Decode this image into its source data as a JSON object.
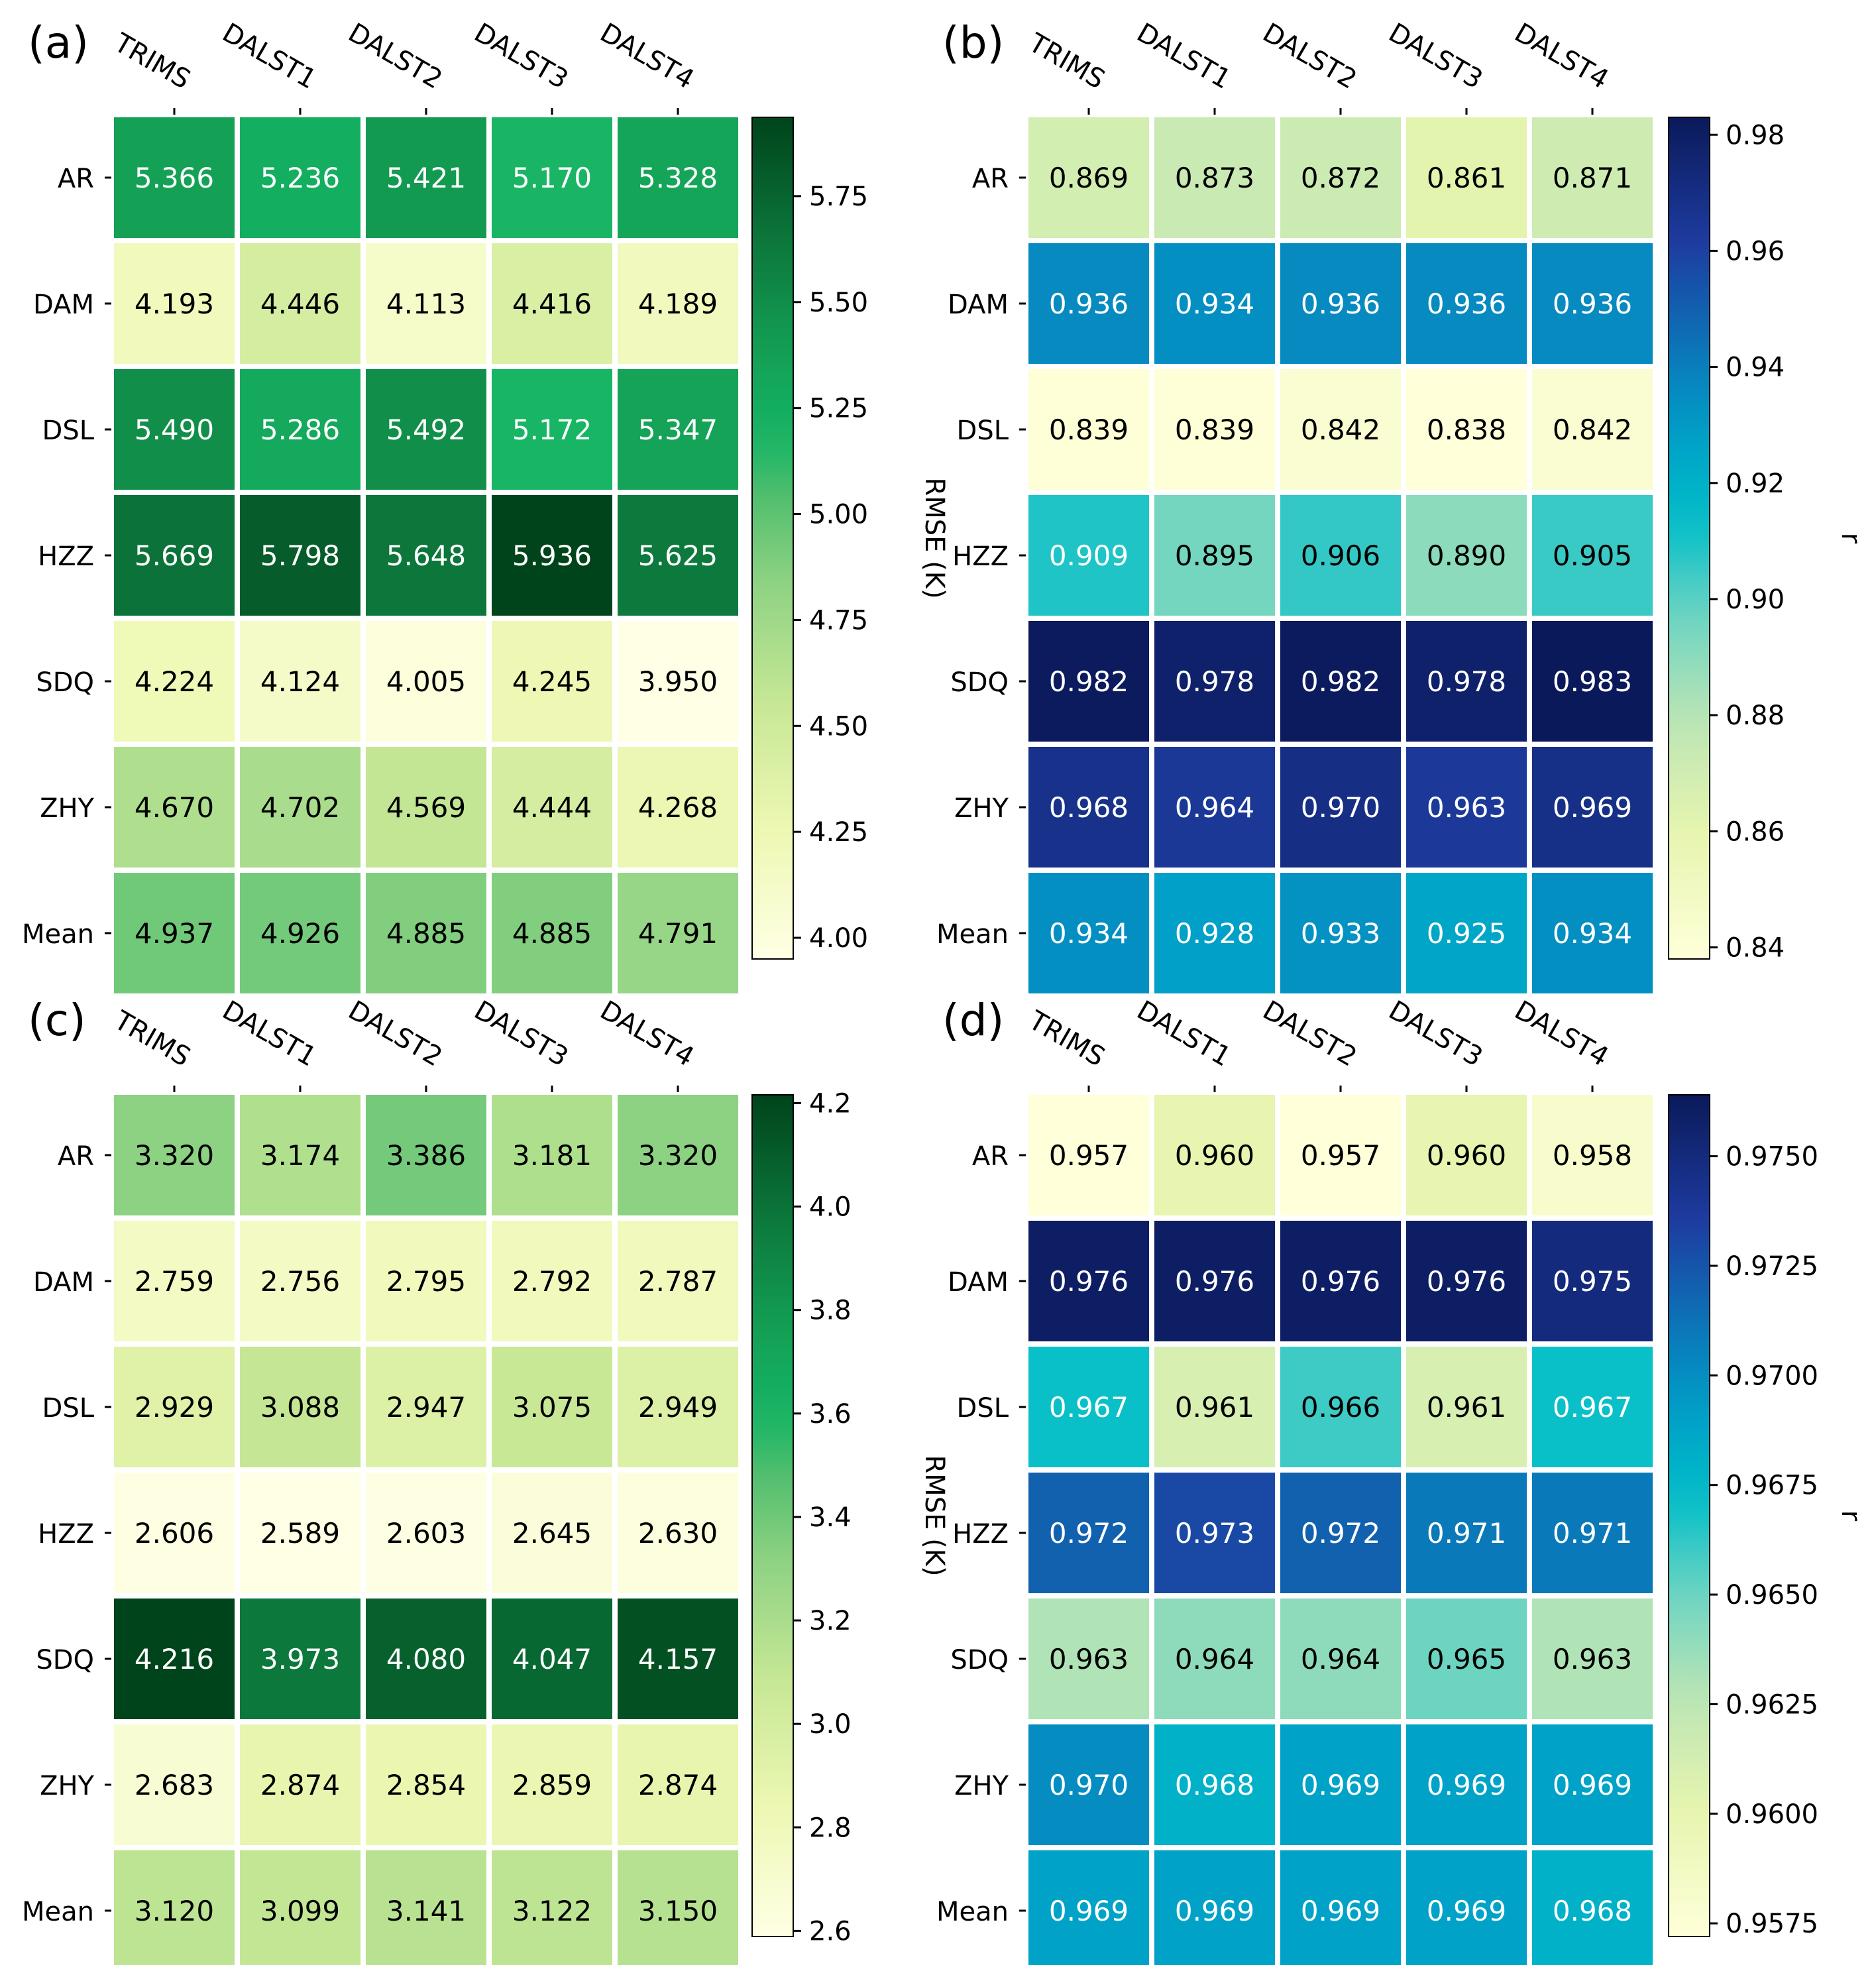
{
  "chart_data": [
    {
      "type": "heatmap",
      "panel_label": "(a)",
      "columns": [
        "TRIMS",
        "DALST1",
        "DALST2",
        "DALST3",
        "DALST4"
      ],
      "rows": [
        "AR",
        "DAM",
        "DSL",
        "HZZ",
        "SDQ",
        "ZHY",
        "Mean"
      ],
      "values": [
        [
          "5.366",
          "5.236",
          "5.421",
          "5.170",
          "5.328"
        ],
        [
          "4.193",
          "4.446",
          "4.113",
          "4.416",
          "4.189"
        ],
        [
          "5.490",
          "5.286",
          "5.492",
          "5.172",
          "5.347"
        ],
        [
          "5.669",
          "5.798",
          "5.648",
          "5.936",
          "5.625"
        ],
        [
          "4.224",
          "4.124",
          "4.005",
          "4.245",
          "3.950"
        ],
        [
          "4.670",
          "4.702",
          "4.569",
          "4.444",
          "4.268"
        ],
        [
          "4.937",
          "4.926",
          "4.885",
          "4.885",
          "4.791"
        ]
      ],
      "colormap": "Greens",
      "colorbar_label": "RMSE (K)",
      "colorbar_range": [
        3.95,
        5.936
      ],
      "colorbar_ticks": [
        "4.00",
        "4.25",
        "4.50",
        "4.75",
        "5.00",
        "5.25",
        "5.50",
        "5.75"
      ]
    },
    {
      "type": "heatmap",
      "panel_label": "(b)",
      "columns": [
        "TRIMS",
        "DALST1",
        "DALST2",
        "DALST3",
        "DALST4"
      ],
      "rows": [
        "AR",
        "DAM",
        "DSL",
        "HZZ",
        "SDQ",
        "ZHY",
        "Mean"
      ],
      "values": [
        [
          "0.869",
          "0.873",
          "0.872",
          "0.861",
          "0.871"
        ],
        [
          "0.936",
          "0.934",
          "0.936",
          "0.936",
          "0.936"
        ],
        [
          "0.839",
          "0.839",
          "0.842",
          "0.838",
          "0.842"
        ],
        [
          "0.909",
          "0.895",
          "0.906",
          "0.890",
          "0.905"
        ],
        [
          "0.982",
          "0.978",
          "0.982",
          "0.978",
          "0.983"
        ],
        [
          "0.968",
          "0.964",
          "0.970",
          "0.963",
          "0.969"
        ],
        [
          "0.934",
          "0.928",
          "0.933",
          "0.925",
          "0.934"
        ]
      ],
      "colormap": "YlGnBu",
      "colorbar_label": "r",
      "colorbar_range": [
        0.838,
        0.983
      ],
      "colorbar_ticks": [
        "0.84",
        "0.86",
        "0.88",
        "0.90",
        "0.92",
        "0.94",
        "0.96",
        "0.98"
      ]
    },
    {
      "type": "heatmap",
      "panel_label": "(c)",
      "columns": [
        "TRIMS",
        "DALST1",
        "DALST2",
        "DALST3",
        "DALST4"
      ],
      "rows": [
        "AR",
        "DAM",
        "DSL",
        "HZZ",
        "SDQ",
        "ZHY",
        "Mean"
      ],
      "values": [
        [
          "3.320",
          "3.174",
          "3.386",
          "3.181",
          "3.320"
        ],
        [
          "2.759",
          "2.756",
          "2.795",
          "2.792",
          "2.787"
        ],
        [
          "2.929",
          "3.088",
          "2.947",
          "3.075",
          "2.949"
        ],
        [
          "2.606",
          "2.589",
          "2.603",
          "2.645",
          "2.630"
        ],
        [
          "4.216",
          "3.973",
          "4.080",
          "4.047",
          "4.157"
        ],
        [
          "2.683",
          "2.874",
          "2.854",
          "2.859",
          "2.874"
        ],
        [
          "3.120",
          "3.099",
          "3.141",
          "3.122",
          "3.150"
        ]
      ],
      "colormap": "Greens",
      "colorbar_label": "RMSE (K)",
      "colorbar_range": [
        2.589,
        4.216
      ],
      "colorbar_ticks": [
        "2.6",
        "2.8",
        "3.0",
        "3.2",
        "3.4",
        "3.6",
        "3.8",
        "4.0",
        "4.2"
      ]
    },
    {
      "type": "heatmap",
      "panel_label": "(d)",
      "columns": [
        "TRIMS",
        "DALST1",
        "DALST2",
        "DALST3",
        "DALST4"
      ],
      "rows": [
        "AR",
        "DAM",
        "DSL",
        "HZZ",
        "SDQ",
        "ZHY",
        "Mean"
      ],
      "values": [
        [
          "0.957",
          "0.960",
          "0.957",
          "0.960",
          "0.958"
        ],
        [
          "0.976",
          "0.976",
          "0.976",
          "0.976",
          "0.975"
        ],
        [
          "0.967",
          "0.961",
          "0.966",
          "0.961",
          "0.967"
        ],
        [
          "0.972",
          "0.973",
          "0.972",
          "0.971",
          "0.971"
        ],
        [
          "0.963",
          "0.964",
          "0.964",
          "0.965",
          "0.963"
        ],
        [
          "0.970",
          "0.968",
          "0.969",
          "0.969",
          "0.969"
        ],
        [
          "0.969",
          "0.969",
          "0.969",
          "0.969",
          "0.968"
        ]
      ],
      "colormap": "YlGnBu",
      "colorbar_label": "r",
      "colorbar_range": [
        0.9572,
        0.9764
      ],
      "colorbar_ticks": [
        "0.9575",
        "0.9600",
        "0.9625",
        "0.9650",
        "0.9675",
        "0.9700",
        "0.9725",
        "0.9750"
      ]
    }
  ]
}
